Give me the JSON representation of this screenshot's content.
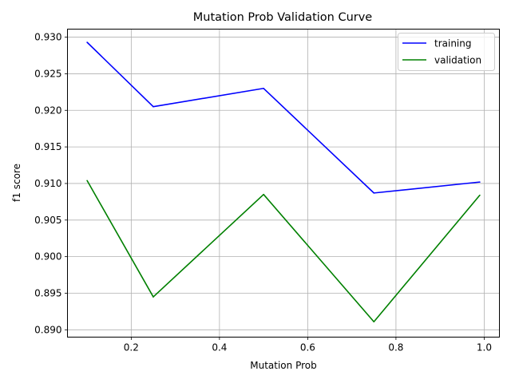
{
  "chart_data": {
    "type": "line",
    "title": "Mutation Prob Validation Curve",
    "xlabel": "Mutation Prob",
    "ylabel": "f1 score",
    "x": [
      0.1,
      0.25,
      0.5,
      0.75,
      0.99
    ],
    "series": [
      {
        "name": "training",
        "color": "#0000ff",
        "values": [
          0.9293,
          0.9205,
          0.923,
          0.9087,
          0.9102
        ]
      },
      {
        "name": "validation",
        "color": "#008000",
        "values": [
          0.9104,
          0.8945,
          0.9085,
          0.8911,
          0.9084
        ]
      }
    ],
    "xlim": [
      0.0555,
      1.0345
    ],
    "ylim": [
      0.889,
      0.9311
    ],
    "xticks": [
      0.2,
      0.4,
      0.6,
      0.8,
      1.0
    ],
    "xtick_labels": [
      "0.2",
      "0.4",
      "0.6",
      "0.8",
      "1.0"
    ],
    "yticks": [
      0.89,
      0.895,
      0.9,
      0.905,
      0.91,
      0.915,
      0.92,
      0.925,
      0.93
    ],
    "ytick_labels": [
      "0.890",
      "0.895",
      "0.900",
      "0.905",
      "0.910",
      "0.915",
      "0.920",
      "0.925",
      "0.930"
    ],
    "grid": true,
    "legend_position": "top-right"
  }
}
